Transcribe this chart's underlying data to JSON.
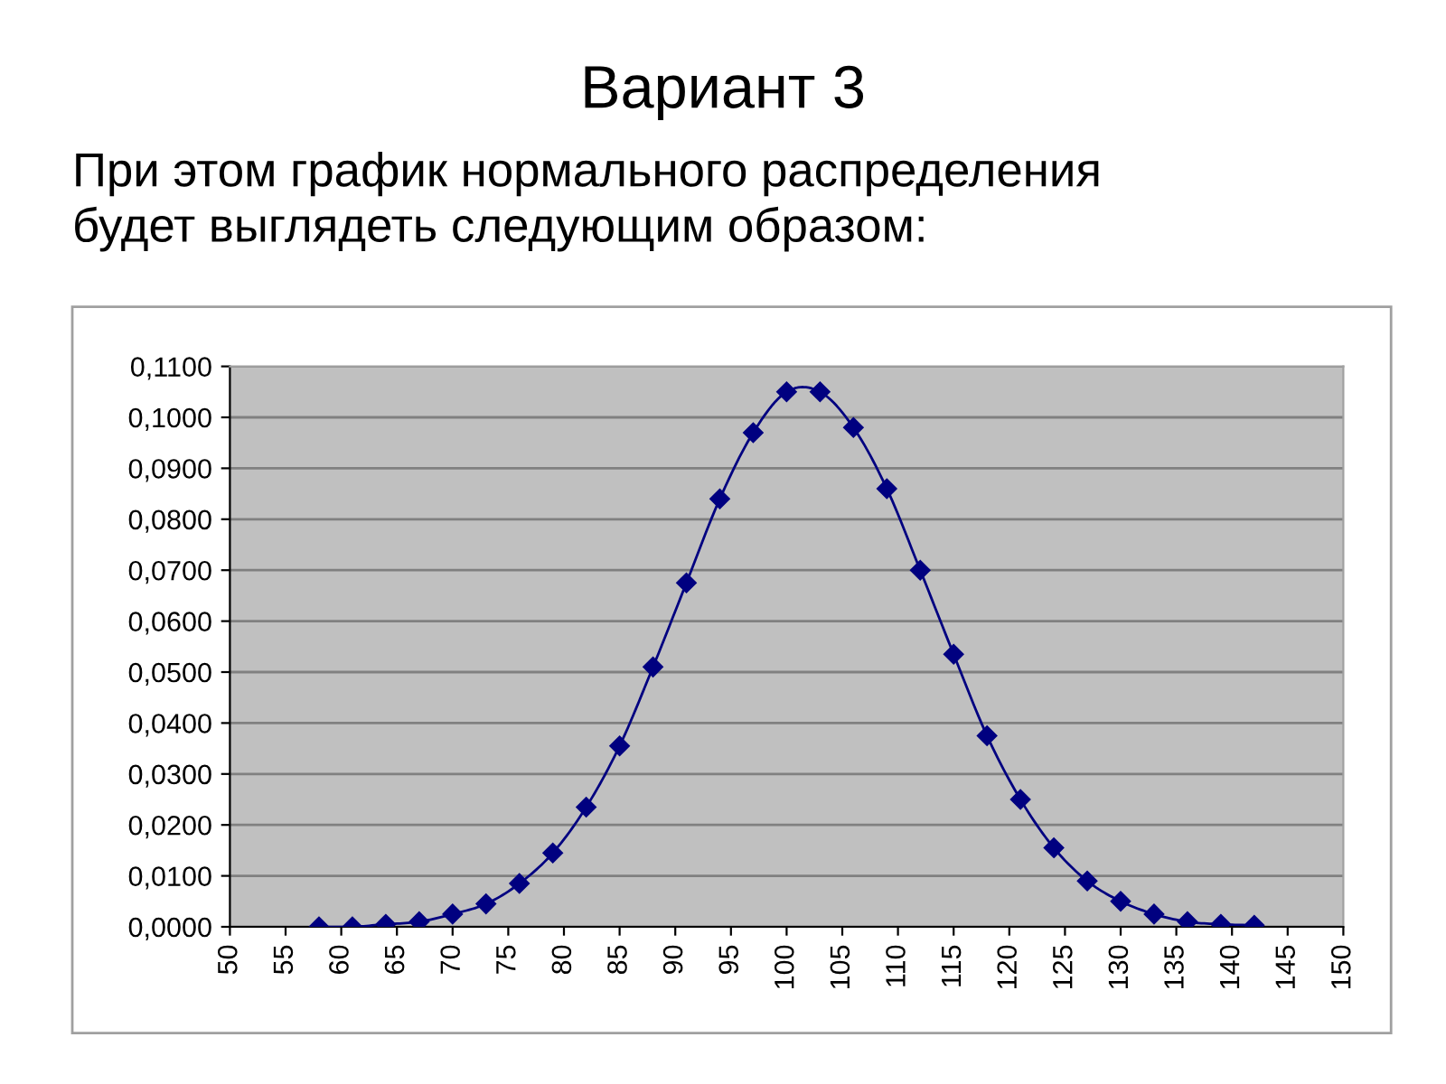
{
  "chart_data": {
    "type": "line",
    "title": "Вариант 3",
    "subtitle": "При этом график нормального распределения\nбудет выглядеть следующим образом:",
    "x": [
      58,
      61,
      64,
      67,
      70,
      73,
      76,
      79,
      82,
      85,
      88,
      91,
      94,
      97,
      100,
      103,
      106,
      109,
      112,
      115,
      118,
      121,
      124,
      127,
      130,
      133,
      136,
      139,
      142
    ],
    "series": [
      {
        "color": "#000080",
        "values": [
          0.0,
          0.0,
          0.0005,
          0.001,
          0.0025,
          0.0045,
          0.0085,
          0.0145,
          0.0235,
          0.0355,
          0.051,
          0.0675,
          0.084,
          0.097,
          0.105,
          0.105,
          0.098,
          0.086,
          0.07,
          0.0535,
          0.0375,
          0.025,
          0.0155,
          0.009,
          0.005,
          0.0025,
          0.001,
          0.0005,
          0.0003
        ]
      }
    ],
    "xlim": [
      50,
      150
    ],
    "xticks": [
      50,
      55,
      60,
      65,
      70,
      75,
      80,
      85,
      90,
      95,
      100,
      105,
      110,
      115,
      120,
      125,
      130,
      135,
      140,
      145,
      150
    ],
    "ylim": [
      0,
      0.11
    ],
    "yticks": [
      {
        "value": 0,
        "label": "0,0000"
      },
      {
        "value": 0.01,
        "label": "0,0100"
      },
      {
        "value": 0.02,
        "label": "0,0200"
      },
      {
        "value": 0.03,
        "label": "0,0300"
      },
      {
        "value": 0.04,
        "label": "0,0400"
      },
      {
        "value": 0.05,
        "label": "0,0500"
      },
      {
        "value": 0.06,
        "label": "0,0600"
      },
      {
        "value": 0.07,
        "label": "0,0700"
      },
      {
        "value": 0.08,
        "label": "0,0800"
      },
      {
        "value": 0.09,
        "label": "0,0900"
      },
      {
        "value": 0.1,
        "label": "0,1000"
      },
      {
        "value": 0.11,
        "label": "0,1100"
      }
    ],
    "grid": "y",
    "marker": "diamond",
    "line_style": "solid"
  }
}
